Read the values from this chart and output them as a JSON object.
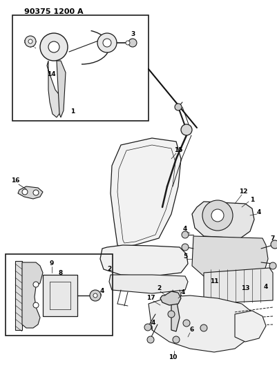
{
  "title": "90375 1200 A",
  "bg_color": "#ffffff",
  "title_fontsize": 8,
  "title_fontweight": "bold",
  "fig_width": 4.01,
  "fig_height": 5.33,
  "dpi": 100,
  "line_color": "#1a1a1a",
  "lw": 0.7
}
